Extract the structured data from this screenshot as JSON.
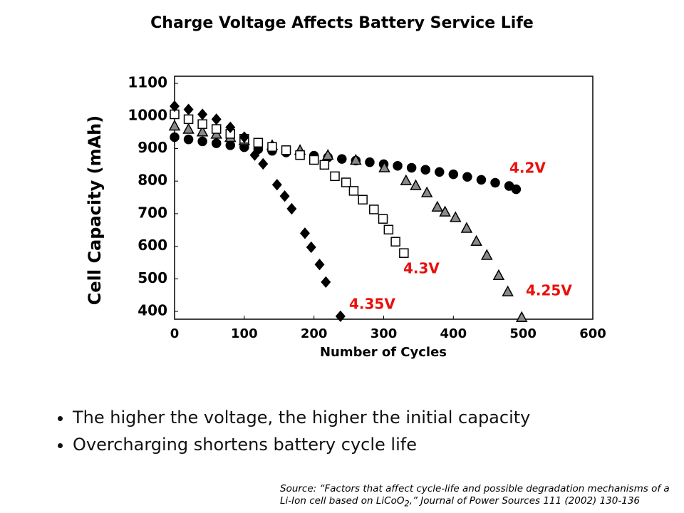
{
  "chart_data": {
    "type": "scatter",
    "title": "Charge Voltage Affects Battery Service Life",
    "x_label": "Number of Cycles",
    "y_label": "Cell Capacity (mAh)",
    "xlim": [
      0,
      600
    ],
    "xticks": [
      0,
      100,
      200,
      300,
      400,
      500,
      600
    ],
    "ylim": [
      376,
      1122
    ],
    "yticks": [
      400,
      500,
      600,
      700,
      800,
      900,
      1000,
      1100
    ],
    "label_color": "#e8100c",
    "series": [
      {
        "name": "4.2V",
        "color": "#000000",
        "marker": "circle",
        "x": [
          0,
          20,
          40,
          60,
          80,
          100,
          120,
          140,
          160,
          180,
          200,
          220,
          240,
          260,
          280,
          300,
          320,
          340,
          360,
          380,
          400,
          420,
          440,
          460,
          480,
          490
        ],
        "values": [
          935,
          928,
          922,
          916,
          910,
          904,
          898,
          893,
          888,
          883,
          878,
          873,
          868,
          863,
          858,
          852,
          847,
          841,
          835,
          828,
          821,
          813,
          804,
          795,
          785,
          775
        ]
      },
      {
        "name": "4.25V",
        "color": "#8a8a8a",
        "marker": "triangle",
        "x": [
          0,
          20,
          40,
          60,
          80,
          100,
          140,
          180,
          220,
          260,
          301,
          332,
          346,
          362,
          377,
          388,
          403,
          419,
          433,
          448,
          465,
          478,
          498
        ],
        "values": [
          970,
          960,
          952,
          945,
          935,
          925,
          910,
          895,
          880,
          865,
          842,
          802,
          787,
          765,
          721,
          706,
          689,
          656,
          616,
          573,
          511,
          461,
          382
        ]
      },
      {
        "name": "4.3V",
        "color": "#ffffff",
        "marker": "square",
        "x": [
          0,
          20,
          40,
          60,
          80,
          100,
          120,
          140,
          160,
          180,
          200,
          215,
          230,
          246,
          257,
          270,
          286,
          299,
          307,
          317,
          329
        ],
        "values": [
          1005,
          990,
          975,
          960,
          945,
          930,
          918,
          905,
          895,
          880,
          865,
          850,
          815,
          796,
          770,
          743,
          713,
          684,
          651,
          614,
          579
        ]
      },
      {
        "name": "4.35V",
        "color": "#000000",
        "marker": "diamond",
        "x": [
          0,
          20,
          40,
          60,
          80,
          100,
          115,
          127,
          147,
          158,
          168,
          187,
          196,
          208,
          217,
          238
        ],
        "values": [
          1030,
          1020,
          1005,
          990,
          965,
          935,
          880,
          853,
          789,
          754,
          715,
          640,
          597,
          544,
          490,
          385
        ]
      }
    ]
  },
  "bullets": [
    "The higher the voltage, the higher the initial capacity",
    "Overcharging shortens battery cycle life"
  ],
  "source": {
    "before": "Source: “Factors that affect cycle-life and possible degradation mechanisms of a Li-Ion cell based on LiCoO",
    "sub": "2",
    "after": ",” Journal of Power Sources 111 (2002) 130-136"
  }
}
